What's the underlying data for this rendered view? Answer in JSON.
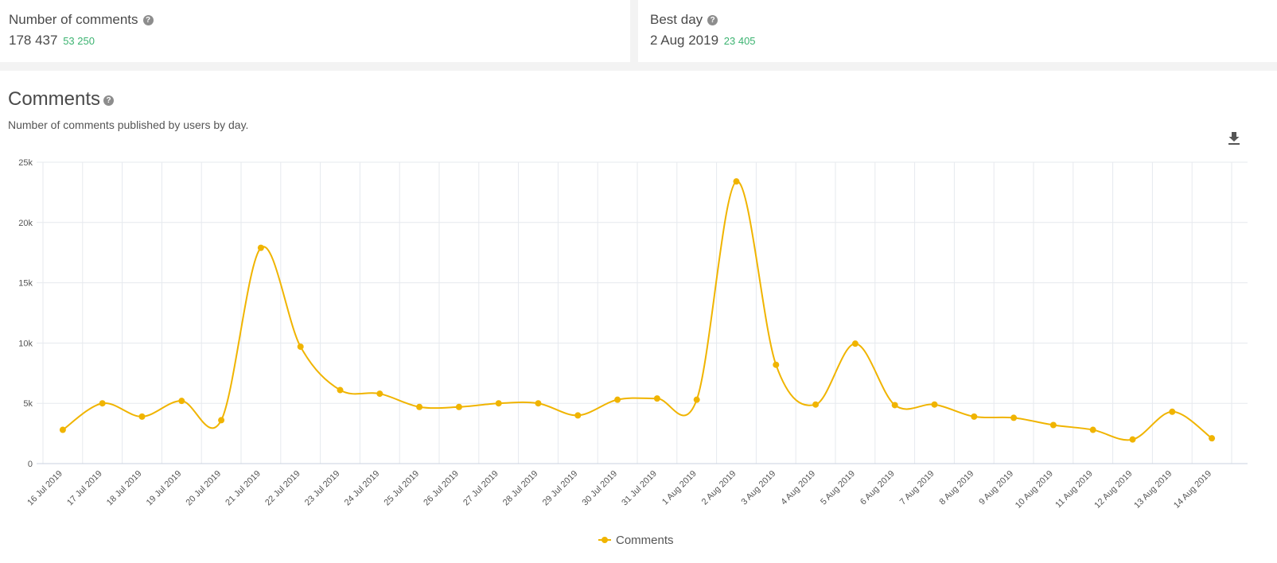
{
  "summary": {
    "comments": {
      "label": "Number of comments",
      "value": "178 437",
      "delta": "53 250",
      "help_icon": "?"
    },
    "best_day": {
      "label": "Best day",
      "value": "2 Aug 2019",
      "delta": "23 405",
      "help_icon": "?"
    }
  },
  "panel": {
    "title": "Comments",
    "subtitle": "Number of comments published by users by day.",
    "help_icon": "?",
    "download_icon": "download-icon"
  },
  "colors": {
    "series": "#f0b400",
    "grid": "#e6e9ee",
    "positive": "#3cb371"
  },
  "chart_data": {
    "type": "line",
    "smooth": true,
    "ylim": [
      0,
      25000
    ],
    "yticks": [
      0,
      5000,
      10000,
      15000,
      20000,
      25000
    ],
    "ytick_labels": [
      "0",
      "5k",
      "10k",
      "15k",
      "20k",
      "25k"
    ],
    "legend": "bottom-center",
    "grid": true,
    "categories": [
      "16 Jul 2019",
      "17 Jul 2019",
      "18 Jul 2019",
      "19 Jul 2019",
      "20 Jul 2019",
      "21 Jul 2019",
      "22 Jul 2019",
      "23 Jul 2019",
      "24 Jul 2019",
      "25 Jul 2019",
      "26 Jul 2019",
      "27 Jul 2019",
      "28 Jul 2019",
      "29 Jul 2019",
      "30 Jul 2019",
      "31 Jul 2019",
      "1 Aug 2019",
      "2 Aug 2019",
      "3 Aug 2019",
      "4 Aug 2019",
      "5 Aug 2019",
      "6 Aug 2019",
      "7 Aug 2019",
      "8 Aug 2019",
      "9 Aug 2019",
      "10 Aug 2019",
      "11 Aug 2019",
      "12 Aug 2019",
      "13 Aug 2019",
      "14 Aug 2019"
    ],
    "series": [
      {
        "name": "Comments",
        "values": [
          2800,
          5000,
          3900,
          5200,
          3600,
          17900,
          9700,
          6100,
          5800,
          4700,
          4700,
          5000,
          5000,
          4000,
          5300,
          5400,
          5300,
          23405,
          8200,
          4900,
          9950,
          4850,
          4900,
          3900,
          3800,
          3200,
          2800,
          2000,
          4300,
          2100
        ]
      }
    ]
  }
}
